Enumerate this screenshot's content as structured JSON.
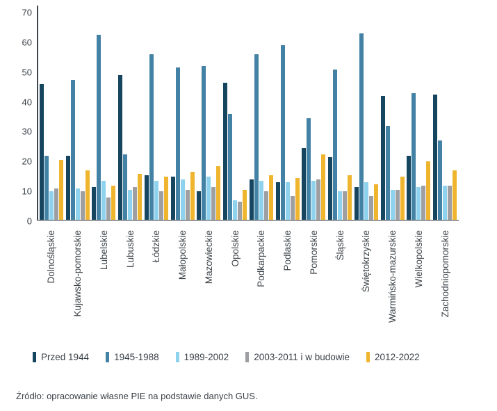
{
  "chart_data": {
    "type": "bar",
    "title": "",
    "categories": [
      "Dolnośląskie",
      "Kujawsko-pomorskie",
      "Lubelskie",
      "Lubuskie",
      "Łódzkie",
      "Małopolskie",
      "Mazowieckie",
      "Opolskie",
      "Podkarpackie",
      "Podlaskie",
      "Pomorskie",
      "Śląskie",
      "Świętokrzyskie",
      "Warmińsko-mazurskie",
      "Wielkopolskie",
      "Zachodniopomorskie"
    ],
    "series": [
      {
        "name": "Przed 1944",
        "color": "#15455f",
        "values": [
          45.5,
          21.5,
          11,
          48.5,
          15,
          14.5,
          9.5,
          46,
          13.5,
          12.5,
          24,
          21,
          11,
          41.5,
          21.5,
          42
        ]
      },
      {
        "name": "1945-1988",
        "color": "#4382a4",
        "values": [
          21.5,
          47,
          62,
          22,
          55.5,
          51,
          51.5,
          35.5,
          55.5,
          58.5,
          34,
          50.5,
          62.5,
          31.5,
          42.5,
          26.5
        ]
      },
      {
        "name": "1989-2002",
        "color": "#8ed2ee",
        "values": [
          9.5,
          10.5,
          13,
          10,
          13,
          13.5,
          14.5,
          6.5,
          13,
          12.5,
          13,
          9.5,
          12.5,
          10,
          11,
          11.5
        ]
      },
      {
        "name": "2003-2011 i w budowie",
        "color": "#9d9fa2",
        "values": [
          10.5,
          9.5,
          7.5,
          11,
          9.5,
          10,
          11,
          6,
          9.5,
          8,
          13.5,
          9.5,
          8,
          10,
          11.5,
          11.5
        ]
      },
      {
        "name": "2012-2022",
        "color": "#efb52f",
        "values": [
          20,
          16.5,
          11.5,
          15.5,
          14.5,
          16,
          18,
          10,
          15,
          14,
          22,
          15,
          12,
          14.5,
          19.5,
          16.5
        ]
      }
    ],
    "ylim": [
      0,
      70
    ],
    "yticks": [
      0,
      10,
      20,
      30,
      40,
      50,
      60,
      70
    ],
    "grid": false,
    "legend_position": "bottom",
    "axis_colors": {
      "y_axis_line": "#3e444c",
      "x_axis_line": "#97999c"
    }
  },
  "source_note": "Źródło: opracowanie własne PIE na podstawie danych GUS."
}
